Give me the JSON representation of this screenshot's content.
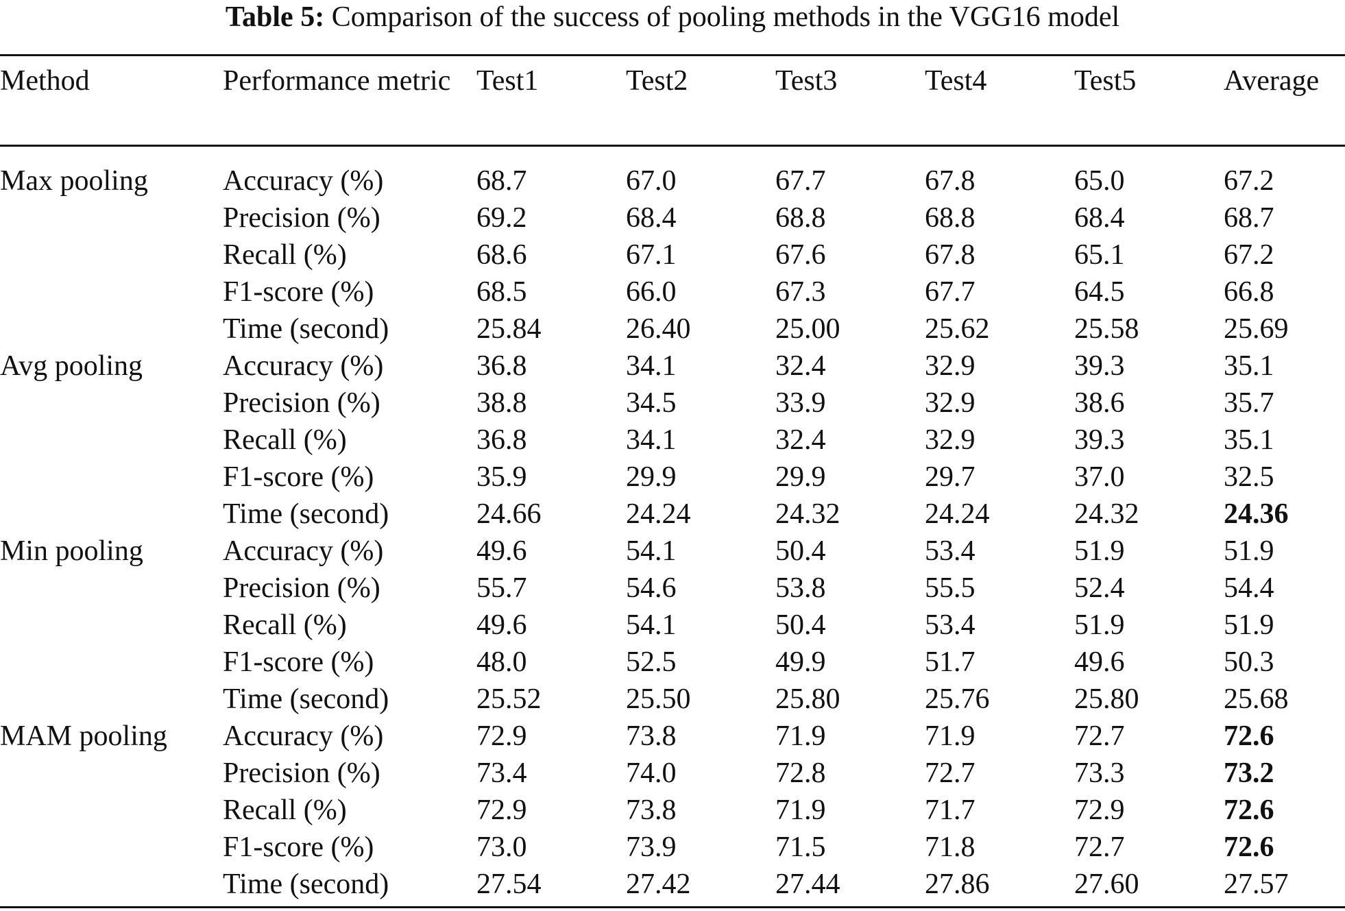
{
  "caption": {
    "label": "Table 5:",
    "text": "Comparison of the success of pooling methods in the VGG16 model"
  },
  "header": {
    "method": "Method",
    "metric": "Performance metric",
    "tests": [
      "Test1",
      "Test2",
      "Test3",
      "Test4",
      "Test5"
    ],
    "average": "Average"
  },
  "groups": [
    {
      "method": "Max pooling",
      "rows": [
        {
          "metric": "Accuracy (%)",
          "values": [
            "68.7",
            "67.0",
            "67.7",
            "67.8",
            "65.0"
          ],
          "average": "67.2",
          "average_bold": false
        },
        {
          "metric": "Precision (%)",
          "values": [
            "69.2",
            "68.4",
            "68.8",
            "68.8",
            "68.4"
          ],
          "average": "68.7",
          "average_bold": false
        },
        {
          "metric": "Recall (%)",
          "values": [
            "68.6",
            "67.1",
            "67.6",
            "67.8",
            "65.1"
          ],
          "average": "67.2",
          "average_bold": false
        },
        {
          "metric": "F1-score (%)",
          "values": [
            "68.5",
            "66.0",
            "67.3",
            "67.7",
            "64.5"
          ],
          "average": "66.8",
          "average_bold": false
        },
        {
          "metric": "Time (second)",
          "values": [
            "25.84",
            "26.40",
            "25.00",
            "25.62",
            "25.58"
          ],
          "average": "25.69",
          "average_bold": false
        }
      ]
    },
    {
      "method": "Avg pooling",
      "rows": [
        {
          "metric": "Accuracy (%)",
          "values": [
            "36.8",
            "34.1",
            "32.4",
            "32.9",
            "39.3"
          ],
          "average": "35.1",
          "average_bold": false
        },
        {
          "metric": "Precision (%)",
          "values": [
            "38.8",
            "34.5",
            "33.9",
            "32.9",
            "38.6"
          ],
          "average": "35.7",
          "average_bold": false
        },
        {
          "metric": "Recall (%)",
          "values": [
            "36.8",
            "34.1",
            "32.4",
            "32.9",
            "39.3"
          ],
          "average": "35.1",
          "average_bold": false
        },
        {
          "metric": "F1-score (%)",
          "values": [
            "35.9",
            "29.9",
            "29.9",
            "29.7",
            "37.0"
          ],
          "average": "32.5",
          "average_bold": false
        },
        {
          "metric": "Time (second)",
          "values": [
            "24.66",
            "24.24",
            "24.32",
            "24.24",
            "24.32"
          ],
          "average": "24.36",
          "average_bold": true
        }
      ]
    },
    {
      "method": "Min pooling",
      "rows": [
        {
          "metric": "Accuracy (%)",
          "values": [
            "49.6",
            "54.1",
            "50.4",
            "53.4",
            "51.9"
          ],
          "average": "51.9",
          "average_bold": false
        },
        {
          "metric": "Precision (%)",
          "values": [
            "55.7",
            "54.6",
            "53.8",
            "55.5",
            "52.4"
          ],
          "average": "54.4",
          "average_bold": false
        },
        {
          "metric": "Recall (%)",
          "values": [
            "49.6",
            "54.1",
            "50.4",
            "53.4",
            "51.9"
          ],
          "average": "51.9",
          "average_bold": false
        },
        {
          "metric": "F1-score (%)",
          "values": [
            "48.0",
            "52.5",
            "49.9",
            "51.7",
            "49.6"
          ],
          "average": "50.3",
          "average_bold": false
        },
        {
          "metric": "Time (second)",
          "values": [
            "25.52",
            "25.50",
            "25.80",
            "25.76",
            "25.80"
          ],
          "average": "25.68",
          "average_bold": false
        }
      ]
    },
    {
      "method": "MAM pooling",
      "rows": [
        {
          "metric": "Accuracy (%)",
          "values": [
            "72.9",
            "73.8",
            "71.9",
            "71.9",
            "72.7"
          ],
          "average": "72.6",
          "average_bold": true
        },
        {
          "metric": "Precision (%)",
          "values": [
            "73.4",
            "74.0",
            "72.8",
            "72.7",
            "73.3"
          ],
          "average": "73.2",
          "average_bold": true
        },
        {
          "metric": "Recall (%)",
          "values": [
            "72.9",
            "73.8",
            "71.9",
            "71.7",
            "72.9"
          ],
          "average": "72.6",
          "average_bold": true
        },
        {
          "metric": "F1-score (%)",
          "values": [
            "73.0",
            "73.9",
            "71.5",
            "71.8",
            "72.7"
          ],
          "average": "72.6",
          "average_bold": true
        },
        {
          "metric": "Time (second)",
          "values": [
            "27.54",
            "27.42",
            "27.44",
            "27.86",
            "27.60"
          ],
          "average": "27.57",
          "average_bold": false
        }
      ]
    }
  ]
}
